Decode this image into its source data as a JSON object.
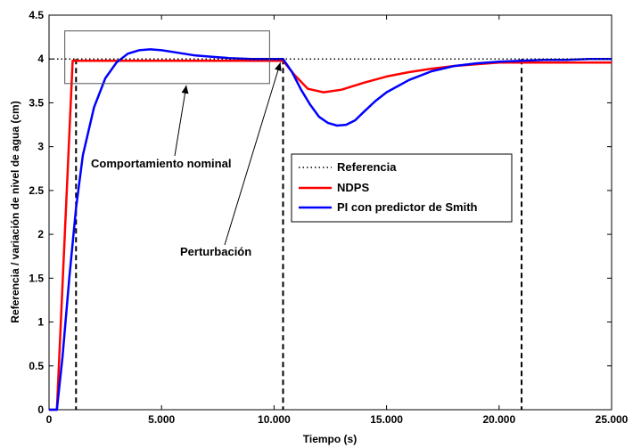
{
  "chart_data": {
    "type": "line",
    "title": "",
    "xlabel": "Tiempo (s)",
    "ylabel": "Referencia / variación de nivel de agua (cm)",
    "xlim": [
      0,
      25000
    ],
    "ylim": [
      0,
      4.5
    ],
    "x_ticks": [
      0,
      5000,
      10000,
      15000,
      20000,
      25000
    ],
    "x_tick_labels": [
      "0",
      "5.000",
      "10.000",
      "15.000",
      "20.000",
      "25.000"
    ],
    "y_ticks": [
      0,
      0.5,
      1,
      1.5,
      2,
      2.5,
      3,
      3.5,
      4,
      4.5
    ],
    "y_tick_labels": [
      "0",
      "0.5",
      "1",
      "1.5",
      "2",
      "2.5",
      "3",
      "3.5",
      "4",
      "4.5"
    ],
    "grid": false,
    "legend_position": "center-right",
    "series": [
      {
        "name": "Referencia",
        "color": "#000000",
        "style": "dotted",
        "x": [
          0,
          25000
        ],
        "y": [
          4.0,
          4.0
        ]
      },
      {
        "name": "NDPS",
        "color": "#ff0000",
        "style": "solid",
        "x": [
          0,
          350,
          1050,
          2000,
          5000,
          9000,
          10000,
          10400,
          10900,
          11500,
          12200,
          13000,
          14000,
          15000,
          16000,
          17000,
          18000,
          19000,
          20000,
          21000,
          22000,
          23000,
          24000,
          25000
        ],
        "y": [
          0,
          0,
          3.98,
          3.98,
          3.98,
          3.98,
          3.98,
          3.98,
          3.82,
          3.66,
          3.62,
          3.65,
          3.73,
          3.8,
          3.85,
          3.89,
          3.92,
          3.94,
          3.96,
          3.96,
          3.96,
          3.96,
          3.96,
          3.96
        ]
      },
      {
        "name": "PI con predictor de Smith",
        "color": "#0000ff",
        "style": "solid",
        "x": [
          0,
          350,
          600,
          900,
          1200,
          1500,
          2000,
          2500,
          3000,
          3500,
          4000,
          4500,
          5000,
          5500,
          6000,
          6500,
          7000,
          7500,
          8000,
          9000,
          10000,
          10400,
          10800,
          11200,
          11600,
          12000,
          12400,
          12800,
          13200,
          13600,
          14000,
          14500,
          15000,
          16000,
          17000,
          18000,
          19000,
          20000,
          21000,
          22000,
          23000,
          24000,
          25000
        ],
        "y": [
          0,
          0,
          0.6,
          1.5,
          2.3,
          2.9,
          3.45,
          3.78,
          3.96,
          4.06,
          4.1,
          4.11,
          4.1,
          4.08,
          4.06,
          4.04,
          4.03,
          4.02,
          4.01,
          4.0,
          4.0,
          4.0,
          3.85,
          3.65,
          3.48,
          3.34,
          3.27,
          3.24,
          3.25,
          3.3,
          3.4,
          3.52,
          3.62,
          3.76,
          3.86,
          3.92,
          3.95,
          3.97,
          3.98,
          3.99,
          3.99,
          4.0,
          4.0
        ]
      }
    ],
    "vertical_dashed_lines_x": [
      1200,
      10400,
      21000
    ],
    "annotations": [
      {
        "text": "Comportamiento nominal",
        "points_to": "nominal-box"
      },
      {
        "text": "Perturbación",
        "points_to_x": 10400,
        "points_to_y": 4.0
      }
    ],
    "annotation_box": {
      "x0": 700,
      "x1": 9800,
      "y0": 3.72,
      "y1": 4.32
    }
  }
}
